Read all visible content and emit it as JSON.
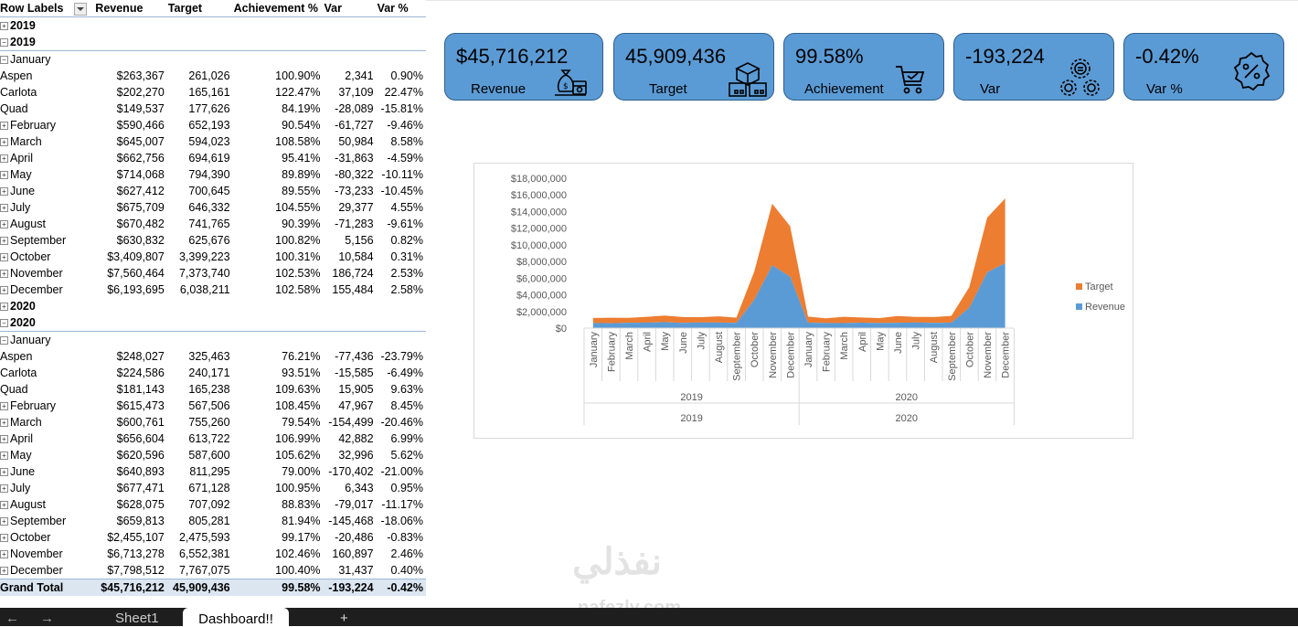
{
  "pivot": {
    "headers": {
      "row_labels": "Row Labels",
      "revenue": "Revenue",
      "target": "Target",
      "achievement": "Achievement %",
      "var": "Var",
      "var_pct": "Var %"
    },
    "rows": [
      {
        "label": "2019",
        "level": 0,
        "type": "year0",
        "toggle": "+"
      },
      {
        "label": "2019",
        "level": 1,
        "type": "year1",
        "toggle": "-"
      },
      {
        "label": "January",
        "level": 2,
        "type": "month",
        "toggle": "-"
      },
      {
        "label": "Aspen",
        "level": 3,
        "type": "item",
        "revenue": "$263,367",
        "target": "261,026",
        "ach": "100.90%",
        "var": "2,341",
        "varp": "0.90%"
      },
      {
        "label": "Carlota",
        "level": 3,
        "type": "item",
        "revenue": "$202,270",
        "target": "165,161",
        "ach": "122.47%",
        "var": "37,109",
        "varp": "22.47%"
      },
      {
        "label": "Quad",
        "level": 3,
        "type": "item",
        "revenue": "$149,537",
        "target": "177,626",
        "ach": "84.19%",
        "var": "-28,089",
        "varp": "-15.81%"
      },
      {
        "label": "February",
        "level": 2,
        "type": "month",
        "toggle": "+",
        "revenue": "$590,466",
        "target": "652,193",
        "ach": "90.54%",
        "var": "-61,727",
        "varp": "-9.46%"
      },
      {
        "label": "March",
        "level": 2,
        "type": "month",
        "toggle": "+",
        "revenue": "$645,007",
        "target": "594,023",
        "ach": "108.58%",
        "var": "50,984",
        "varp": "8.58%"
      },
      {
        "label": "April",
        "level": 2,
        "type": "month",
        "toggle": "+",
        "revenue": "$662,756",
        "target": "694,619",
        "ach": "95.41%",
        "var": "-31,863",
        "varp": "-4.59%"
      },
      {
        "label": "May",
        "level": 2,
        "type": "month",
        "toggle": "+",
        "revenue": "$714,068",
        "target": "794,390",
        "ach": "89.89%",
        "var": "-80,322",
        "varp": "-10.11%"
      },
      {
        "label": "June",
        "level": 2,
        "type": "month",
        "toggle": "+",
        "revenue": "$627,412",
        "target": "700,645",
        "ach": "89.55%",
        "var": "-73,233",
        "varp": "-10.45%"
      },
      {
        "label": "July",
        "level": 2,
        "type": "month",
        "toggle": "+",
        "revenue": "$675,709",
        "target": "646,332",
        "ach": "104.55%",
        "var": "29,377",
        "varp": "4.55%"
      },
      {
        "label": "August",
        "level": 2,
        "type": "month",
        "toggle": "+",
        "revenue": "$670,482",
        "target": "741,765",
        "ach": "90.39%",
        "var": "-71,283",
        "varp": "-9.61%"
      },
      {
        "label": "September",
        "level": 2,
        "type": "month",
        "toggle": "+",
        "revenue": "$630,832",
        "target": "625,676",
        "ach": "100.82%",
        "var": "5,156",
        "varp": "0.82%"
      },
      {
        "label": "October",
        "level": 2,
        "type": "month",
        "toggle": "+",
        "revenue": "$3,409,807",
        "target": "3,399,223",
        "ach": "100.31%",
        "var": "10,584",
        "varp": "0.31%"
      },
      {
        "label": "November",
        "level": 2,
        "type": "month",
        "toggle": "+",
        "revenue": "$7,560,464",
        "target": "7,373,740",
        "ach": "102.53%",
        "var": "186,724",
        "varp": "2.53%"
      },
      {
        "label": "December",
        "level": 2,
        "type": "month",
        "toggle": "+",
        "revenue": "$6,193,695",
        "target": "6,038,211",
        "ach": "102.58%",
        "var": "155,484",
        "varp": "2.58%"
      },
      {
        "label": "2020",
        "level": 0,
        "type": "year0",
        "toggle": "+"
      },
      {
        "label": "2020",
        "level": 1,
        "type": "year1",
        "toggle": "-"
      },
      {
        "label": "January",
        "level": 2,
        "type": "month",
        "toggle": "-"
      },
      {
        "label": "Aspen",
        "level": 3,
        "type": "item",
        "revenue": "$248,027",
        "target": "325,463",
        "ach": "76.21%",
        "var": "-77,436",
        "varp": "-23.79%"
      },
      {
        "label": "Carlota",
        "level": 3,
        "type": "item",
        "revenue": "$224,586",
        "target": "240,171",
        "ach": "93.51%",
        "var": "-15,585",
        "varp": "-6.49%"
      },
      {
        "label": "Quad",
        "level": 3,
        "type": "item",
        "revenue": "$181,143",
        "target": "165,238",
        "ach": "109.63%",
        "var": "15,905",
        "varp": "9.63%"
      },
      {
        "label": "February",
        "level": 2,
        "type": "month",
        "toggle": "+",
        "revenue": "$615,473",
        "target": "567,506",
        "ach": "108.45%",
        "var": "47,967",
        "varp": "8.45%"
      },
      {
        "label": "March",
        "level": 2,
        "type": "month",
        "toggle": "+",
        "revenue": "$600,761",
        "target": "755,260",
        "ach": "79.54%",
        "var": "-154,499",
        "varp": "-20.46%"
      },
      {
        "label": "April",
        "level": 2,
        "type": "month",
        "toggle": "+",
        "revenue": "$656,604",
        "target": "613,722",
        "ach": "106.99%",
        "var": "42,882",
        "varp": "6.99%"
      },
      {
        "label": "May",
        "level": 2,
        "type": "month",
        "toggle": "+",
        "revenue": "$620,596",
        "target": "587,600",
        "ach": "105.62%",
        "var": "32,996",
        "varp": "5.62%"
      },
      {
        "label": "June",
        "level": 2,
        "type": "month",
        "toggle": "+",
        "revenue": "$640,893",
        "target": "811,295",
        "ach": "79.00%",
        "var": "-170,402",
        "varp": "-21.00%"
      },
      {
        "label": "July",
        "level": 2,
        "type": "month",
        "toggle": "+",
        "revenue": "$677,471",
        "target": "671,128",
        "ach": "100.95%",
        "var": "6,343",
        "varp": "0.95%"
      },
      {
        "label": "August",
        "level": 2,
        "type": "month",
        "toggle": "+",
        "revenue": "$628,075",
        "target": "707,092",
        "ach": "88.83%",
        "var": "-79,017",
        "varp": "-11.17%"
      },
      {
        "label": "September",
        "level": 2,
        "type": "month",
        "toggle": "+",
        "revenue": "$659,813",
        "target": "805,281",
        "ach": "81.94%",
        "var": "-145,468",
        "varp": "-18.06%"
      },
      {
        "label": "October",
        "level": 2,
        "type": "month",
        "toggle": "+",
        "revenue": "$2,455,107",
        "target": "2,475,593",
        "ach": "99.17%",
        "var": "-20,486",
        "varp": "-0.83%"
      },
      {
        "label": "November",
        "level": 2,
        "type": "month",
        "toggle": "+",
        "revenue": "$6,713,278",
        "target": "6,552,381",
        "ach": "102.46%",
        "var": "160,897",
        "varp": "2.46%"
      },
      {
        "label": "December",
        "level": 2,
        "type": "month",
        "toggle": "+",
        "revenue": "$7,798,512",
        "target": "7,767,075",
        "ach": "100.40%",
        "var": "31,437",
        "varp": "0.40%"
      }
    ],
    "grand_total": {
      "label": "Grand Total",
      "revenue": "$45,716,212",
      "target": "45,909,436",
      "ach": "99.58%",
      "var": "-193,224",
      "varp": "-0.42%"
    }
  },
  "kpis": {
    "revenue": {
      "value": "$45,716,212",
      "label": "Revenue",
      "icon": "money-bag-icon"
    },
    "target": {
      "value": "45,909,436",
      "label": "Target",
      "icon": "boxes-icon"
    },
    "achievement": {
      "value": "99.58%",
      "label": "Achievement",
      "icon": "cart-check-icon"
    },
    "var": {
      "value": "-193,224",
      "label": "Var",
      "icon": "gears-icon"
    },
    "var_pct": {
      "value": "-0.42%",
      "label": "Var %",
      "icon": "percent-badge-icon"
    }
  },
  "colors": {
    "card_fill": "#5b9bd5",
    "card_border": "#2f5f8f",
    "target_series": "#ed7d31",
    "revenue_series": "#5b9bd5",
    "grand_total_fill": "#dce6f1"
  },
  "chart_data": {
    "type": "area",
    "stacked": true,
    "x_categories": [
      "January",
      "February",
      "March",
      "April",
      "May",
      "June",
      "July",
      "August",
      "September",
      "October",
      "November",
      "December",
      "January",
      "February",
      "March",
      "April",
      "May",
      "June",
      "July",
      "August",
      "September",
      "October",
      "November",
      "December"
    ],
    "x_groups": [
      {
        "label": "2019",
        "outer": "2019"
      },
      {
        "label": "2020",
        "outer": "2020"
      }
    ],
    "series": [
      {
        "name": "Revenue",
        "color": "#5b9bd5",
        "values": [
          615174,
          590466,
          645007,
          662756,
          714068,
          627412,
          675709,
          670482,
          630832,
          3409807,
          7560464,
          6193695,
          653756,
          615473,
          600761,
          656604,
          620596,
          640893,
          677471,
          628075,
          659813,
          2455107,
          6713278,
          7798512
        ]
      },
      {
        "name": "Target",
        "color": "#ed7d31",
        "values": [
          603813,
          652193,
          594023,
          694619,
          794390,
          700645,
          646332,
          741765,
          625676,
          3399223,
          7373740,
          6038211,
          730872,
          567506,
          755260,
          613722,
          587600,
          811295,
          671128,
          707092,
          805281,
          2475593,
          6552381,
          7767075
        ]
      }
    ],
    "y_ticks": [
      "$0",
      "$2,000,000",
      "$4,000,000",
      "$6,000,000",
      "$8,000,000",
      "$10,000,000",
      "$12,000,000",
      "$14,000,000",
      "$16,000,000",
      "$18,000,000"
    ],
    "ylim": [
      0,
      18000000
    ],
    "legend": [
      {
        "label": "Target",
        "color": "#ed7d31"
      },
      {
        "label": "Revenue",
        "color": "#5b9bd5"
      }
    ],
    "legend_position": "right",
    "grid": false
  },
  "tabs": {
    "sheet1": "Sheet1",
    "dashboard": "Dashboard!!",
    "add": "+"
  },
  "nav": {
    "left": "←",
    "right": "→"
  },
  "watermark": {
    "arabic": "نفذلي",
    "domain": "nafezly.com"
  }
}
